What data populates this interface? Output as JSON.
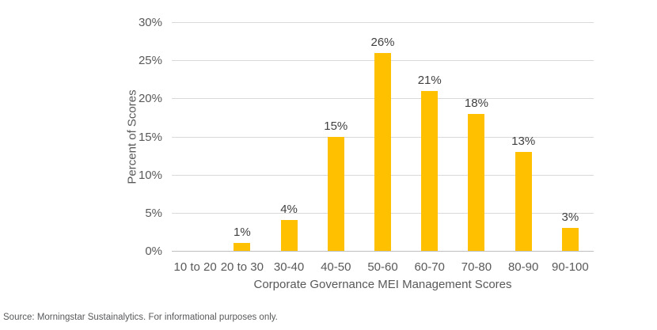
{
  "chart_data": {
    "type": "bar",
    "categories": [
      "10 to 20",
      "20 to 30",
      "30-40",
      "40-50",
      "50-60",
      "60-70",
      "70-80",
      "80-90",
      "90-100"
    ],
    "values": [
      0,
      1,
      4,
      15,
      26,
      21,
      18,
      13,
      3
    ],
    "value_labels": [
      "",
      "1%",
      "4%",
      "15%",
      "26%",
      "21%",
      "18%",
      "13%",
      "3%"
    ],
    "title": "",
    "xlabel": "Corporate Governance MEI Management Scores",
    "ylabel": "Percent of Scores",
    "ylim": [
      0,
      30
    ],
    "yticks": [
      0,
      5,
      10,
      15,
      20,
      25,
      30
    ],
    "ytick_labels": [
      "0%",
      "5%",
      "10%",
      "15%",
      "20%",
      "25%",
      "30%"
    ],
    "grid": true,
    "legend": false,
    "bar_color": "#FFC000"
  },
  "colors": {
    "bar": "#FFC000",
    "gridline": "#D9D9D9",
    "axis_line": "#BFBFBF",
    "tick_text": "#595959",
    "data_label_text": "#404040",
    "source_text": "#58595B"
  },
  "source_note": "Source: Morningstar Sustainalytics. For informational purposes only."
}
